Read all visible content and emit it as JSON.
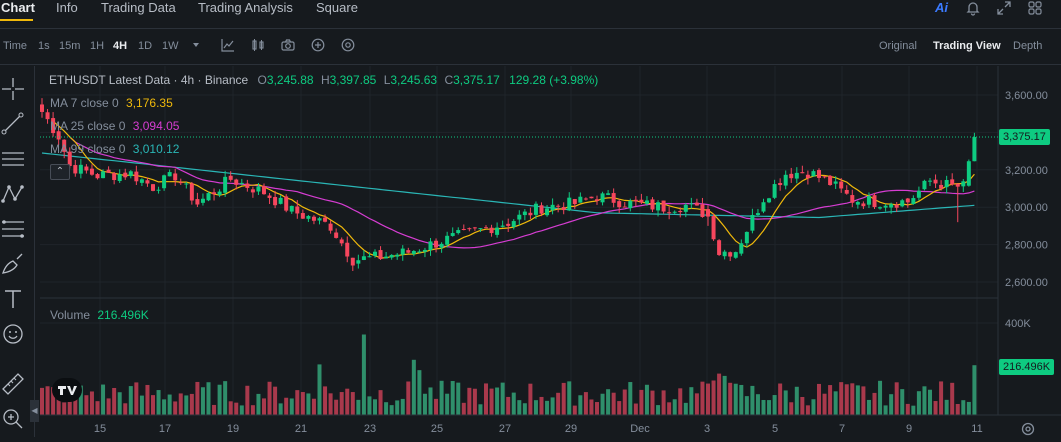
{
  "nav": {
    "tabs": [
      "Chart",
      "Info",
      "Trading Data",
      "Trading Analysis",
      "Square"
    ],
    "ai_label": "Ai"
  },
  "toolbar": {
    "time_label": "Time",
    "intervals": [
      "1s",
      "15m",
      "1H",
      "4H",
      "1D",
      "1W"
    ],
    "active_interval": "4H",
    "views": [
      "Original",
      "Trading View",
      "Depth"
    ],
    "active_view": "Trading View"
  },
  "legend": {
    "symbol": "ETHUSDT Latest Data · 4h · Binance",
    "open_label": "O",
    "open": "3,245.88",
    "high_label": "H",
    "high": "3,397.85",
    "low_label": "L",
    "low": "3,245.63",
    "close_label": "C",
    "close": "3,375.17",
    "change": "129.28 (+3.98%)",
    "ma7_label": "MA 7 close 0",
    "ma7_value": "3,176.35",
    "ma25_label": "MA 25 close 0",
    "ma25_value": "3,094.05",
    "ma99_label": "MA 99 close 0",
    "ma99_value": "3,010.12",
    "volume_label": "Volume",
    "volume_value": "216.496K"
  },
  "colors": {
    "up": "#0ecb81",
    "down": "#f6465d",
    "ma7": "#f0b90b",
    "ma25": "#d63dd2",
    "ma99": "#2ab6b6",
    "vol_up": "#2f8f6b",
    "vol_down": "#a9394c",
    "background": "#161a1e"
  },
  "price_axis": {
    "labels": [
      "3,600.00",
      "3,400.00",
      "3,200.00",
      "3,000.00",
      "2,800.00",
      "2,600.00"
    ],
    "current_price": "3,375.17"
  },
  "volume_axis": {
    "labels": [
      "400K"
    ],
    "current_volume": "216.496K"
  },
  "time_axis": {
    "labels": [
      "15",
      "17",
      "19",
      "21",
      "23",
      "25",
      "27",
      "29",
      "Dec",
      "3",
      "5",
      "7",
      "9",
      "11"
    ]
  },
  "chart_data": {
    "type": "candlestick",
    "timeframe": "4h",
    "ylim": [
      2550,
      3680
    ],
    "volume_max": 500,
    "y_ticks": [
      3600,
      3400,
      3200,
      3000,
      2800,
      2600
    ],
    "x_ticks": [
      "15",
      "17",
      "19",
      "21",
      "23",
      "25",
      "27",
      "29",
      "Dec",
      "3",
      "5",
      "7",
      "9",
      "11"
    ],
    "close_anchors": [
      [
        0,
        3510
      ],
      [
        3,
        3380
      ],
      [
        5,
        3220
      ],
      [
        10,
        3170
      ],
      [
        16,
        3180
      ],
      [
        20,
        3110
      ],
      [
        24,
        3170
      ],
      [
        28,
        3020
      ],
      [
        34,
        3150
      ],
      [
        40,
        3080
      ],
      [
        45,
        2980
      ],
      [
        52,
        2900
      ],
      [
        56,
        2720
      ],
      [
        60,
        2730
      ],
      [
        66,
        2760
      ],
      [
        72,
        2820
      ],
      [
        78,
        2870
      ],
      [
        84,
        2920
      ],
      [
        90,
        3000
      ],
      [
        96,
        3020
      ],
      [
        100,
        3060
      ],
      [
        106,
        3020
      ],
      [
        112,
        3000
      ],
      [
        116,
        3010
      ],
      [
        120,
        2960
      ],
      [
        122,
        2760
      ],
      [
        125,
        2770
      ],
      [
        130,
        3050
      ],
      [
        134,
        3180
      ],
      [
        138,
        3190
      ],
      [
        142,
        3130
      ],
      [
        146,
        3040
      ],
      [
        150,
        3030
      ],
      [
        156,
        3030
      ],
      [
        160,
        3140
      ],
      [
        164,
        3110
      ],
      [
        166,
        3110
      ],
      [
        167,
        3245
      ],
      [
        168,
        3375
      ]
    ],
    "last_candle": {
      "open": 3245.88,
      "high": 3397.85,
      "low": 3245.63,
      "close": 3375.17,
      "volume_k": 216.496
    },
    "ma": [
      {
        "name": "MA 7",
        "value": 3176.35
      },
      {
        "name": "MA 25",
        "value": 3094.05
      },
      {
        "name": "MA 99",
        "value": 3010.12
      }
    ]
  }
}
